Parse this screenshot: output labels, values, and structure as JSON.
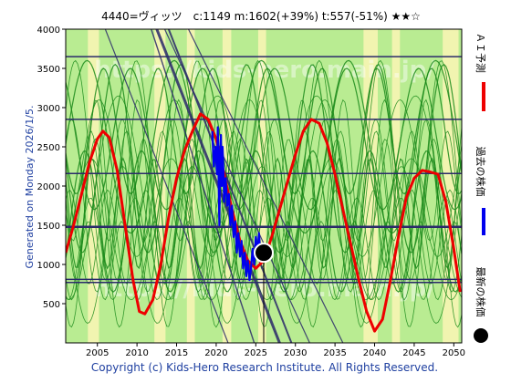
{
  "header": {
    "title": "4440=ヴィッツ　c:1149  m:1602(+39%)  t:557(-51%)  ★★☆"
  },
  "side_labels": {
    "generated": "Generated on Monday 2026/1/5.",
    "ai_forecast": "ＡＩ予測",
    "past_price": "過去の株価",
    "latest_price": "最新の株価"
  },
  "footer": {
    "copyright": "Copyright (c) Kids-Hero Research Institute. All Rights Reserved."
  },
  "watermark": "https://kids-hero.main.jp/",
  "colors": {
    "forecast": "#ee0000",
    "past": "#0000ee",
    "latest": "#000000",
    "ribbon": "#1a8a1a",
    "band_green": "#b9ec92",
    "band_yellow": "#f7f5b4",
    "channel": "#2a2a6a"
  },
  "chart_data": {
    "type": "line",
    "xlim": [
      2001,
      2051
    ],
    "ylim": [
      0,
      4000
    ],
    "x_ticks": [
      2005,
      2010,
      2015,
      2020,
      2025,
      2030,
      2035,
      2040,
      2045,
      2050
    ],
    "y_ticks": [
      500,
      1000,
      1500,
      2000,
      2500,
      3000,
      3500,
      4000
    ],
    "horizontal_levels": [
      3650,
      2850,
      2160,
      1480,
      810,
      770
    ],
    "emphasized_level": 1480,
    "latest_point": {
      "x": 2026.0,
      "y": 1149
    },
    "current_year_marker": 2026.0,
    "forecast_series": {
      "name": "ＡＩ予測",
      "points": [
        [
          2001,
          1150
        ],
        [
          2002,
          1500
        ],
        [
          2003,
          1900
        ],
        [
          2004,
          2300
        ],
        [
          2005,
          2600
        ],
        [
          2005.7,
          2700
        ],
        [
          2006.5,
          2620
        ],
        [
          2007.5,
          2200
        ],
        [
          2008.5,
          1500
        ],
        [
          2009.5,
          800
        ],
        [
          2010.3,
          400
        ],
        [
          2011,
          370
        ],
        [
          2012,
          550
        ],
        [
          2013,
          1000
        ],
        [
          2014,
          1600
        ],
        [
          2015,
          2100
        ],
        [
          2016,
          2450
        ],
        [
          2017,
          2700
        ],
        [
          2018,
          2920
        ],
        [
          2019,
          2850
        ],
        [
          2020,
          2600
        ],
        [
          2021,
          2150
        ],
        [
          2022,
          1700
        ],
        [
          2023,
          1300
        ],
        [
          2024,
          1050
        ],
        [
          2025,
          950
        ],
        [
          2026,
          1050
        ],
        [
          2027,
          1350
        ],
        [
          2028,
          1700
        ],
        [
          2029,
          2050
        ],
        [
          2030,
          2400
        ],
        [
          2031,
          2700
        ],
        [
          2032,
          2850
        ],
        [
          2033,
          2800
        ],
        [
          2034,
          2550
        ],
        [
          2035,
          2150
        ],
        [
          2036,
          1700
        ],
        [
          2037,
          1250
        ],
        [
          2038,
          800
        ],
        [
          2039,
          400
        ],
        [
          2040,
          150
        ],
        [
          2041,
          300
        ],
        [
          2042,
          800
        ],
        [
          2043,
          1350
        ],
        [
          2044,
          1850
        ],
        [
          2045,
          2100
        ],
        [
          2046,
          2200
        ],
        [
          2047,
          2180
        ],
        [
          2048,
          2150
        ],
        [
          2049,
          1800
        ],
        [
          2050,
          1200
        ],
        [
          2050.8,
          650
        ]
      ]
    },
    "past_series": {
      "name": "過去の株価",
      "points": [
        [
          2019.5,
          2700
        ],
        [
          2019.7,
          2250
        ],
        [
          2019.9,
          2500
        ],
        [
          2020.1,
          2150
        ],
        [
          2020.2,
          2750
        ],
        [
          2020.4,
          1500
        ],
        [
          2020.5,
          2450
        ],
        [
          2020.6,
          2650
        ],
        [
          2020.7,
          2000
        ],
        [
          2020.8,
          2500
        ],
        [
          2020.9,
          2250
        ],
        [
          2021.0,
          1800
        ],
        [
          2021.2,
          2100
        ],
        [
          2021.4,
          1750
        ],
        [
          2021.6,
          1900
        ],
        [
          2021.8,
          1500
        ],
        [
          2022.0,
          1750
        ],
        [
          2022.2,
          1350
        ],
        [
          2022.4,
          1550
        ],
        [
          2022.6,
          1150
        ],
        [
          2022.8,
          1400
        ],
        [
          2023.0,
          1100
        ],
        [
          2023.2,
          1300
        ],
        [
          2023.4,
          950
        ],
        [
          2023.6,
          1150
        ],
        [
          2023.8,
          850
        ],
        [
          2024.0,
          1050
        ],
        [
          2024.2,
          800
        ],
        [
          2024.4,
          950
        ],
        [
          2024.6,
          1200
        ],
        [
          2024.8,
          1000
        ],
        [
          2025.0,
          1350
        ],
        [
          2025.2,
          1150
        ],
        [
          2025.4,
          1400
        ],
        [
          2025.6,
          1100
        ],
        [
          2025.8,
          1250
        ],
        [
          2026.0,
          1149
        ]
      ]
    }
  }
}
